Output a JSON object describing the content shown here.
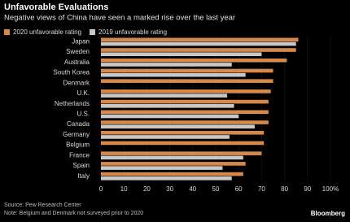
{
  "chart_data": {
    "type": "hbar",
    "title": "Unfavorable Evaluations",
    "subtitle": "Negative views of China have seen a marked rise over the last year",
    "categories": [
      "Japan",
      "Sweden",
      "Australia",
      "South Korea",
      "Denmark",
      "U.K.",
      "Netherlands",
      "U.S.",
      "Canada",
      "Germany",
      "Belgium",
      "France",
      "Spain",
      "Italy"
    ],
    "series": [
      {
        "name": "2020 unfavorable rating",
        "color": "#d8894a",
        "values": [
          86,
          85,
          81,
          75,
          75,
          74,
          73,
          73,
          73,
          71,
          71,
          70,
          63,
          62
        ]
      },
      {
        "name": "2019 unfavorable rating",
        "color": "#c8c8c8",
        "values": [
          85,
          70,
          57,
          63,
          null,
          55,
          58,
          60,
          67,
          56,
          null,
          62,
          53,
          57
        ]
      }
    ],
    "xlim": [
      0,
      100
    ],
    "xticks": [
      0,
      10,
      20,
      30,
      40,
      50,
      60,
      70,
      80,
      90,
      {
        "value": 100,
        "label": "100%"
      }
    ],
    "grid": true,
    "source": "Source: Pew Research Center",
    "note": "Note: Belgium and Denmark not surveyed prior to 2020",
    "brand": "Bloomberg"
  }
}
